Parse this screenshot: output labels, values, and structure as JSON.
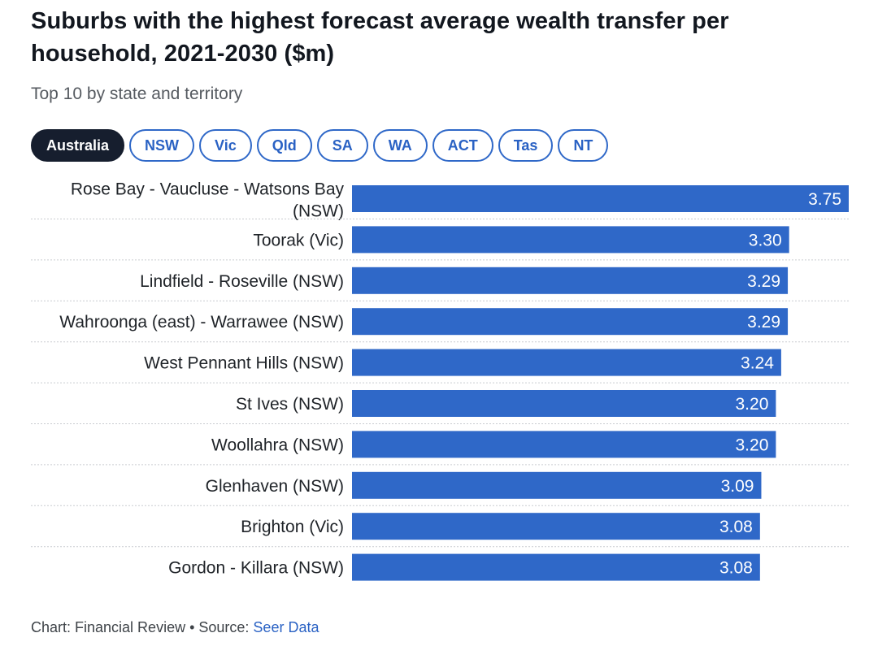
{
  "title": "Suburbs with the highest forecast average wealth transfer per household, 2021-2030 ($m)",
  "subtitle": "Top 10 by state and territory",
  "tabs": [
    {
      "label": "Australia",
      "active": true
    },
    {
      "label": "NSW",
      "active": false
    },
    {
      "label": "Vic",
      "active": false
    },
    {
      "label": "Qld",
      "active": false
    },
    {
      "label": "SA",
      "active": false
    },
    {
      "label": "WA",
      "active": false
    },
    {
      "label": "ACT",
      "active": false
    },
    {
      "label": "Tas",
      "active": false
    },
    {
      "label": "NT",
      "active": false
    }
  ],
  "chart_data": {
    "type": "bar",
    "orientation": "horizontal",
    "categories": [
      "Rose Bay - Vaucluse - Watsons Bay (NSW)",
      "Toorak (Vic)",
      "Lindfield - Roseville (NSW)",
      "Wahroonga (east) - Warrawee (NSW)",
      "West Pennant Hills (NSW)",
      "St Ives (NSW)",
      "Woollahra (NSW)",
      "Glenhaven (NSW)",
      "Brighton (Vic)",
      "Gordon - Killara (NSW)"
    ],
    "values": [
      3.75,
      3.3,
      3.29,
      3.29,
      3.24,
      3.2,
      3.2,
      3.09,
      3.08,
      3.08
    ],
    "value_labels": [
      "3.75",
      "3.30",
      "3.29",
      "3.29",
      "3.24",
      "3.20",
      "3.20",
      "3.09",
      "3.08",
      "3.08"
    ],
    "xlim": [
      0,
      3.75
    ],
    "grid": false,
    "bar_color": "#2f68c8",
    "label_color": "#ffffff"
  },
  "footer": {
    "prefix": "Chart: Financial Review • Source: ",
    "link": "Seer Data"
  },
  "colors": {
    "accent": "#2f68c8",
    "active_tab": "#161e2e"
  }
}
